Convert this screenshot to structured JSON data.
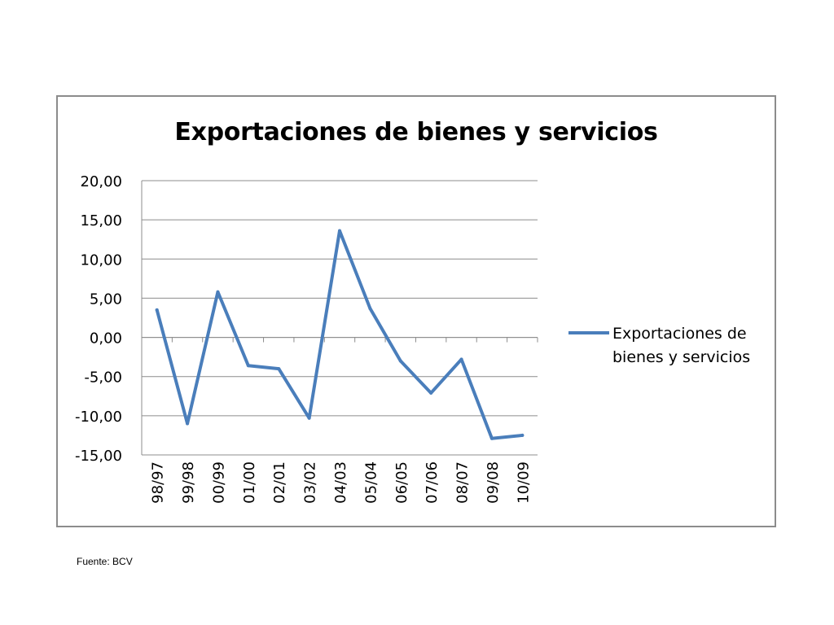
{
  "chart_data": {
    "type": "line",
    "title": "Exportaciones de bienes y servicios",
    "categories": [
      "98/97",
      "99/98",
      "00/99",
      "01/00",
      "02/01",
      "03/02",
      "04/03",
      "05/04",
      "06/05",
      "07/06",
      "08/07",
      "09/08",
      "10/09"
    ],
    "series": [
      {
        "name": "Exportaciones de bienes y servicios",
        "values": [
          3.5,
          -11.0,
          5.8,
          -3.6,
          -4.0,
          -10.3,
          13.6,
          3.7,
          -3.0,
          -7.1,
          -2.8,
          -12.9,
          -12.5
        ],
        "color": "#4a7ebb"
      }
    ],
    "ylim": [
      -15,
      20
    ],
    "yticks": [
      "-15,00",
      "-10,00",
      "-5,00",
      "0,00",
      "5,00",
      "10,00",
      "15,00",
      "20,00"
    ],
    "grid": true,
    "legend_position": "right"
  },
  "footer": {
    "source": "Fuente: BCV"
  },
  "colors": {
    "line": "#4a7ebb",
    "grid": "#8c8c8c",
    "border": "#8c8c8c"
  }
}
